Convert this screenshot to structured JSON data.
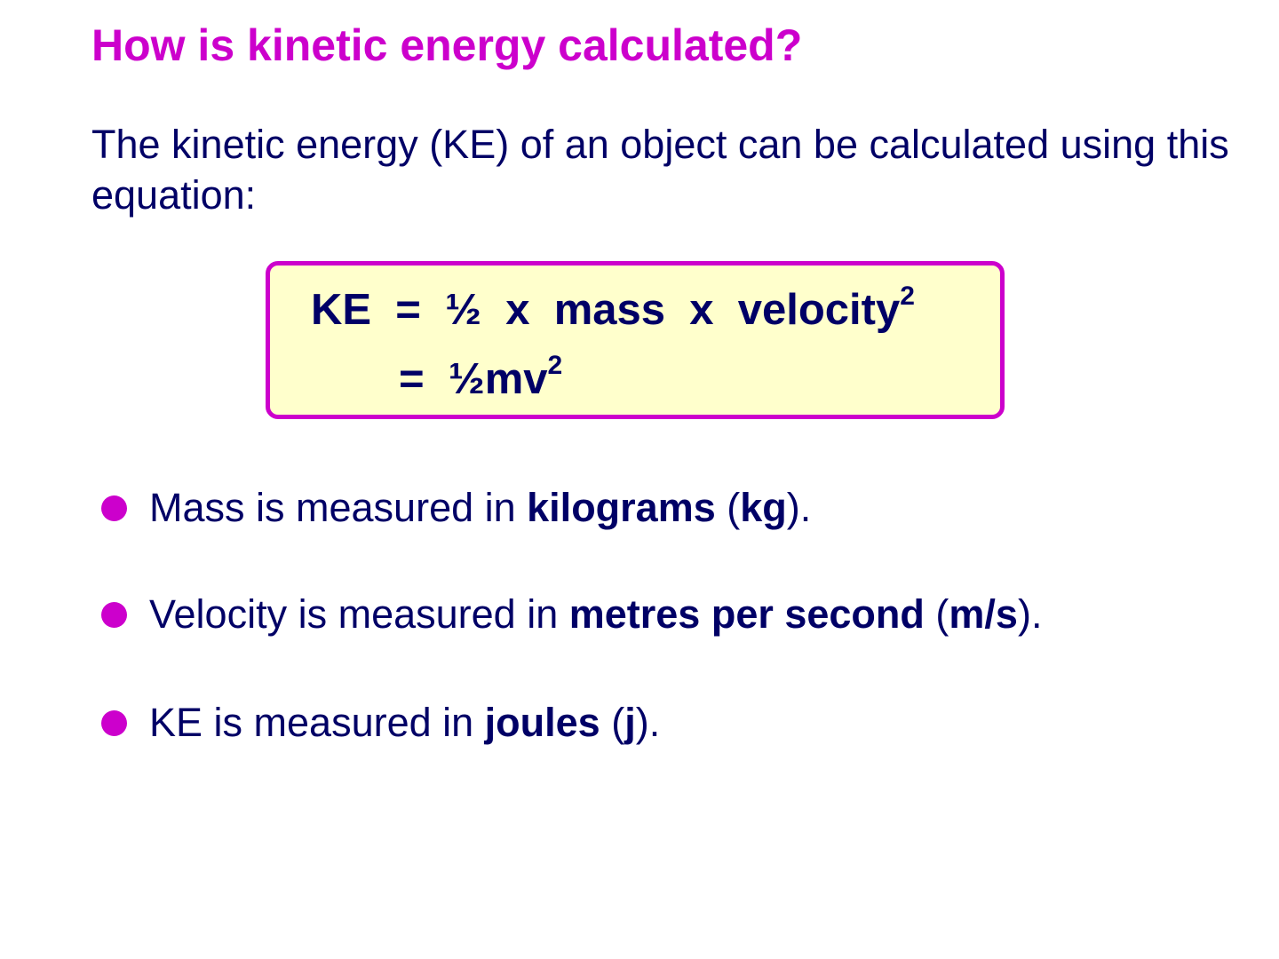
{
  "title": "How is kinetic energy calculated?",
  "intro": "The kinetic energy (KE) of an object can be calculated using this equation:",
  "equation": {
    "line1": "KE  =  ½  x  mass  x  velocity",
    "line1_sup": "2",
    "line2": "=  ½mv",
    "line2_sup": "2"
  },
  "bullets": [
    {
      "pre": "Mass is measured in ",
      "bold1": "kilograms",
      "mid": " (",
      "bold2": "kg",
      "post": ")."
    },
    {
      "pre": "Velocity is measured in ",
      "bold1": "metres per second",
      "mid": " (",
      "bold2": "m/s",
      "post": ")."
    },
    {
      "pre": "KE is measured in ",
      "bold1": "joules",
      "mid": " (",
      "bold2": "j",
      "post": ")."
    }
  ],
  "colors": {
    "accent": "#cc00cc",
    "text": "#000066",
    "box_fill": "#ffffcc"
  }
}
